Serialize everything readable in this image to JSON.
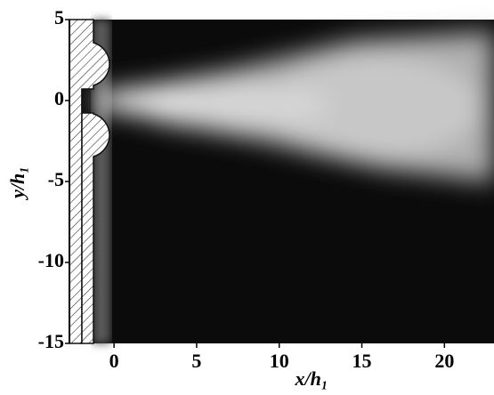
{
  "chart_data": {
    "type": "photo",
    "xlabel": "x/h₁",
    "ylabel": "y/h₁",
    "xlim": [
      -2.7,
      23
    ],
    "ylim": [
      -15,
      5
    ],
    "xticks": [
      0,
      5,
      10,
      15,
      20
    ],
    "yticks": [
      5,
      0,
      -5,
      -10,
      -15
    ]
  }
}
